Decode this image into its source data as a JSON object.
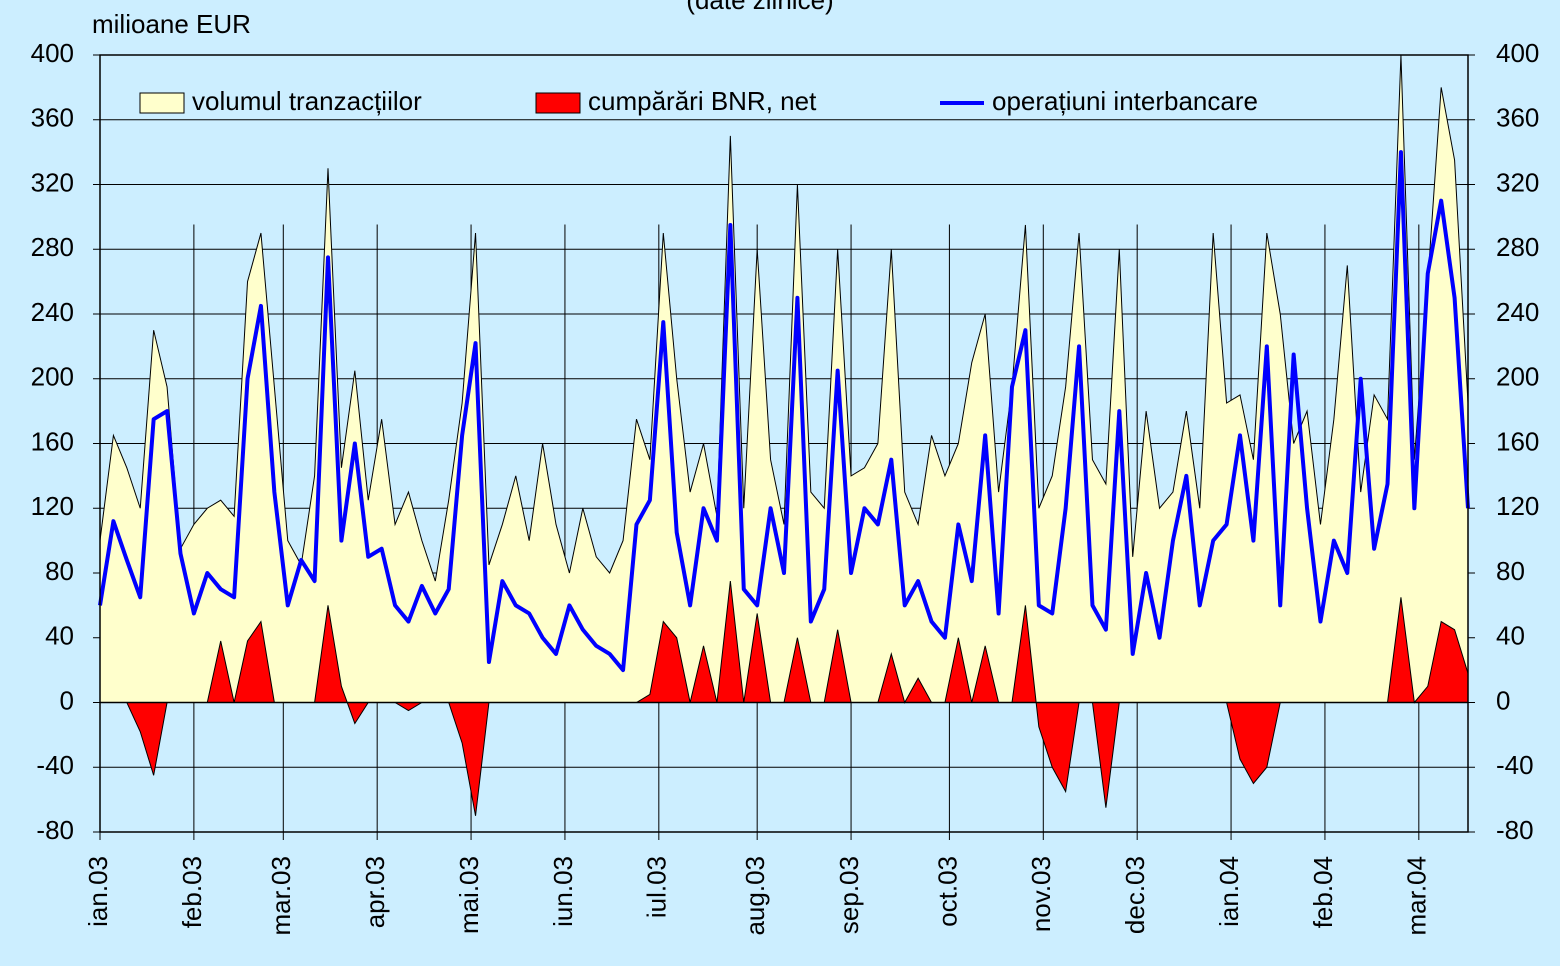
{
  "chart_data": {
    "type": "area-line",
    "subtitle": "(date zilnice)",
    "ylabel": "milioane EUR",
    "xlim": [
      0,
      306
    ],
    "xticks": [
      {
        "value": 0,
        "label": "ian.03"
      },
      {
        "value": 21,
        "label": "feb.03"
      },
      {
        "value": 41,
        "label": "mar.03"
      },
      {
        "value": 62,
        "label": "apr.03"
      },
      {
        "value": 83,
        "label": "mai.03"
      },
      {
        "value": 104,
        "label": "iun.03"
      },
      {
        "value": 125,
        "label": "iul.03"
      },
      {
        "value": 147,
        "label": "aug.03"
      },
      {
        "value": 168,
        "label": "sep.03"
      },
      {
        "value": 190,
        "label": "oct.03"
      },
      {
        "value": 211,
        "label": "nov.03"
      },
      {
        "value": 232,
        "label": "dec.03"
      },
      {
        "value": 253,
        "label": "ian.04"
      },
      {
        "value": 274,
        "label": "feb.04"
      },
      {
        "value": 295,
        "label": "mar.04"
      }
    ],
    "ylim": [
      -80,
      400
    ],
    "yticks": [
      -80,
      -40,
      0,
      40,
      80,
      120,
      160,
      200,
      240,
      280,
      320,
      360,
      400
    ],
    "grid": true,
    "legend": "top",
    "x": [
      0,
      3,
      6,
      9,
      12,
      15,
      18,
      21,
      24,
      27,
      30,
      33,
      36,
      39,
      42,
      45,
      48,
      51,
      54,
      57,
      60,
      63,
      66,
      69,
      72,
      75,
      78,
      81,
      84,
      87,
      90,
      93,
      96,
      99,
      102,
      105,
      108,
      111,
      114,
      117,
      120,
      123,
      126,
      129,
      132,
      135,
      138,
      141,
      144,
      147,
      150,
      153,
      156,
      159,
      162,
      165,
      168,
      171,
      174,
      177,
      180,
      183,
      186,
      189,
      192,
      195,
      198,
      201,
      204,
      207,
      210,
      213,
      216,
      219,
      222,
      225,
      228,
      231,
      234,
      237,
      240,
      243,
      246,
      249,
      252,
      255,
      258,
      261,
      264,
      267,
      270,
      273,
      276,
      279,
      282,
      285,
      288,
      291,
      294,
      297,
      300,
      303,
      306
    ],
    "series": [
      {
        "name": "volumul tranzacțiilor",
        "kind": "area",
        "color": "#ffffcc",
        "values": [
          100,
          165,
          145,
          120,
          230,
          195,
          95,
          110,
          120,
          125,
          115,
          260,
          290,
          195,
          100,
          85,
          140,
          330,
          145,
          205,
          125,
          175,
          110,
          130,
          100,
          75,
          125,
          185,
          290,
          85,
          110,
          140,
          100,
          160,
          110,
          80,
          120,
          90,
          80,
          100,
          175,
          150,
          290,
          200,
          130,
          160,
          115,
          350,
          120,
          280,
          150,
          110,
          320,
          130,
          120,
          280,
          140,
          145,
          160,
          280,
          130,
          110,
          165,
          140,
          160,
          210,
          240,
          130,
          195,
          295,
          120,
          140,
          195,
          290,
          150,
          135,
          280,
          90,
          180,
          120,
          130,
          180,
          120,
          290,
          185,
          190,
          150,
          290,
          240,
          160,
          180,
          110,
          175,
          270,
          130,
          190,
          175,
          400,
          150,
          260,
          380,
          335,
          185
        ]
      },
      {
        "name": "cumpărări BNR, net",
        "kind": "area",
        "color": "#ff0000",
        "values": [
          0,
          0,
          0,
          -18,
          -45,
          0,
          0,
          0,
          0,
          38,
          0,
          38,
          50,
          0,
          0,
          0,
          0,
          60,
          10,
          -13,
          0,
          0,
          0,
          -5,
          0,
          0,
          0,
          -25,
          -70,
          0,
          0,
          0,
          0,
          0,
          0,
          0,
          0,
          0,
          0,
          0,
          0,
          5,
          50,
          40,
          0,
          35,
          0,
          75,
          0,
          55,
          0,
          0,
          40,
          0,
          0,
          45,
          0,
          0,
          0,
          30,
          0,
          15,
          0,
          0,
          40,
          0,
          35,
          0,
          0,
          60,
          -15,
          -40,
          -55,
          0,
          0,
          -65,
          0,
          0,
          0,
          0,
          0,
          0,
          0,
          0,
          0,
          -35,
          -50,
          -40,
          0,
          0,
          0,
          0,
          0,
          0,
          0,
          0,
          0,
          65,
          0,
          10,
          50,
          45,
          18
        ]
      },
      {
        "name": "operațiuni interbancare",
        "kind": "line",
        "color": "#0000ff",
        "values": [
          60,
          112,
          88,
          65,
          175,
          180,
          92,
          55,
          80,
          70,
          65,
          200,
          245,
          130,
          60,
          88,
          75,
          275,
          100,
          160,
          90,
          95,
          60,
          50,
          72,
          55,
          70,
          165,
          222,
          25,
          75,
          60,
          55,
          40,
          30,
          60,
          45,
          35,
          30,
          20,
          110,
          125,
          235,
          105,
          60,
          120,
          100,
          295,
          70,
          60,
          120,
          80,
          250,
          50,
          70,
          205,
          80,
          120,
          110,
          150,
          60,
          75,
          50,
          40,
          110,
          75,
          165,
          55,
          195,
          230,
          60,
          55,
          120,
          220,
          60,
          45,
          180,
          30,
          80,
          40,
          100,
          140,
          60,
          100,
          110,
          165,
          100,
          220,
          60,
          215,
          120,
          50,
          100,
          80,
          200,
          95,
          135,
          340,
          120,
          265,
          310,
          250,
          120
        ]
      }
    ]
  }
}
